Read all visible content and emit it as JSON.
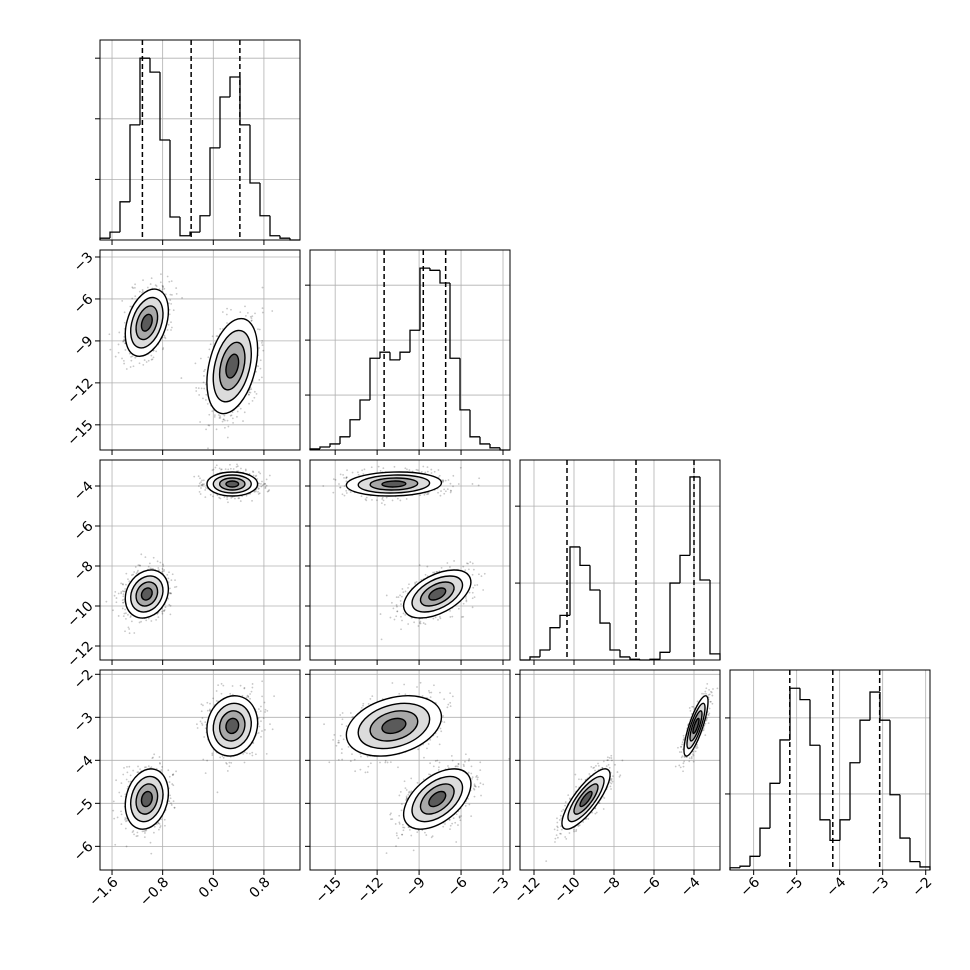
{
  "chart_data": {
    "type": "corner",
    "parameters": [
      {
        "lim": [
          -1.79,
          1.37
        ],
        "ticks": [
          {
            "value": -1.6,
            "label": "−1.6"
          },
          {
            "value": -0.8,
            "label": "−0.8"
          },
          {
            "value": 0,
            "label": "0.0"
          },
          {
            "value": 0.8,
            "label": "0.8"
          }
        ],
        "quantiles": [
          -1.12,
          -0.35,
          0.42
        ],
        "hist": {
          "bins": [
            -1.79,
            -1.632,
            -1.474,
            -1.316,
            -1.158,
            -1.0,
            -0.842,
            -0.684,
            -0.526,
            -0.368,
            -0.21,
            -0.052,
            0.106,
            0.264,
            0.422,
            0.58,
            0.738,
            0.896,
            1.054,
            1.212,
            1.37
          ],
          "values": [
            30,
            130,
            630,
            1900,
            3000,
            2770,
            1650,
            380,
            70,
            130,
            400,
            1520,
            2360,
            2690,
            1900,
            940,
            400,
            70,
            30,
            0
          ],
          "ylim": [
            0,
            3300
          ],
          "yticks": [
            1000,
            2000,
            3000
          ]
        }
      },
      {
        "lim": [
          -16.8,
          -2.5
        ],
        "ticks": [
          {
            "value": -15,
            "label": "−15"
          },
          {
            "value": -12,
            "label": "−12"
          },
          {
            "value": -9,
            "label": "−9"
          },
          {
            "value": -6,
            "label": "−6"
          },
          {
            "value": -3,
            "label": "−3"
          }
        ],
        "quantiles": [
          -11.5,
          -8.7,
          -7.1
        ],
        "hist": {
          "bins": [
            -16.8,
            -16.085,
            -15.37,
            -14.655,
            -13.94,
            -13.225,
            -12.51,
            -11.795,
            -11.08,
            -10.365,
            -9.65,
            -8.935,
            -8.22,
            -7.505,
            -6.79,
            -6.075,
            -5.36,
            -4.645,
            -3.93,
            -3.215,
            -2.5
          ],
          "values": [
            20,
            55,
            110,
            240,
            550,
            910,
            1670,
            1780,
            1640,
            1780,
            2180,
            3310,
            3270,
            3040,
            1670,
            730,
            240,
            110,
            40,
            0
          ],
          "ylim": [
            0,
            3640
          ],
          "yticks": [
            1000,
            2000,
            3000
          ]
        }
      },
      {
        "lim": [
          -12.7,
          -2.7
        ],
        "ticks": [
          {
            "value": -12,
            "label": "−12"
          },
          {
            "value": -10,
            "label": "−10"
          },
          {
            "value": -8,
            "label": "−8"
          },
          {
            "value": -6,
            "label": "−6"
          },
          {
            "value": -4,
            "label": "−4"
          }
        ],
        "quantiles": [
          -10.35,
          -6.9,
          -4.0
        ],
        "hist": {
          "bins": [
            -12.7,
            -12.2,
            -11.7,
            -11.2,
            -10.7,
            -10.2,
            -9.7,
            -9.2,
            -8.7,
            -8.2,
            -7.7,
            -7.2,
            -6.7,
            -6.2,
            -5.7,
            -5.2,
            -4.7,
            -4.2,
            -3.7,
            -3.2,
            -2.7
          ],
          "values": [
            0,
            40,
            130,
            420,
            580,
            1470,
            1230,
            910,
            480,
            130,
            40,
            10,
            0,
            10,
            100,
            1000,
            1360,
            2380,
            1040,
            80
          ],
          "ylim": [
            0,
            2600
          ],
          "yticks": [
            1000,
            2000
          ]
        }
      },
      {
        "lim": [
          -6.55,
          -1.9
        ],
        "ticks": [
          {
            "value": -6,
            "label": "−6"
          },
          {
            "value": -5,
            "label": "−5"
          },
          {
            "value": -4,
            "label": "−4"
          },
          {
            "value": -3,
            "label": "−3"
          },
          {
            "value": -2,
            "label": "−2"
          }
        ],
        "quantiles": [
          -5.16,
          -4.16,
          -3.07
        ],
        "hist": {
          "bins": [
            -6.55,
            -6.3175,
            -6.085,
            -5.8525,
            -5.62,
            -5.3875,
            -5.155,
            -4.9225,
            -4.69,
            -4.4575,
            -4.225,
            -3.9925,
            -3.76,
            -3.5275,
            -3.295,
            -3.0625,
            -2.83,
            -2.5975,
            -2.365,
            -2.1325,
            -1.9
          ],
          "values": [
            30,
            50,
            180,
            550,
            1140,
            1710,
            2390,
            2240,
            1640,
            660,
            390,
            660,
            1410,
            1970,
            2340,
            1970,
            990,
            420,
            110,
            40
          ],
          "ylim": [
            0,
            2630
          ],
          "yticks": [
            1000,
            2000
          ]
        }
      }
    ],
    "clusters": [
      {
        "mean": [
          -1.05,
          -7.7,
          -9.4,
          -4.9
        ],
        "sd": [
          0.17,
          1.2,
          0.6,
          0.35
        ]
      },
      {
        "mean": [
          0.3,
          -10.8,
          -3.9,
          -3.2
        ],
        "sd": [
          0.2,
          1.7,
          0.3,
          0.35
        ]
      }
    ],
    "panels": [
      {
        "corr": [
          0.35,
          0.35
        ]
      },
      {
        "corr": [
          0.2,
          0
        ]
      },
      {
        "corr": [
          0.5,
          0.1
        ]
      },
      {
        "corr": [
          0.2,
          0.1
        ]
      },
      {
        "corr": [
          0.5,
          0.3
        ]
      },
      {
        "corr": [
          0.8,
          0.8
        ]
      }
    ],
    "grid": true
  }
}
